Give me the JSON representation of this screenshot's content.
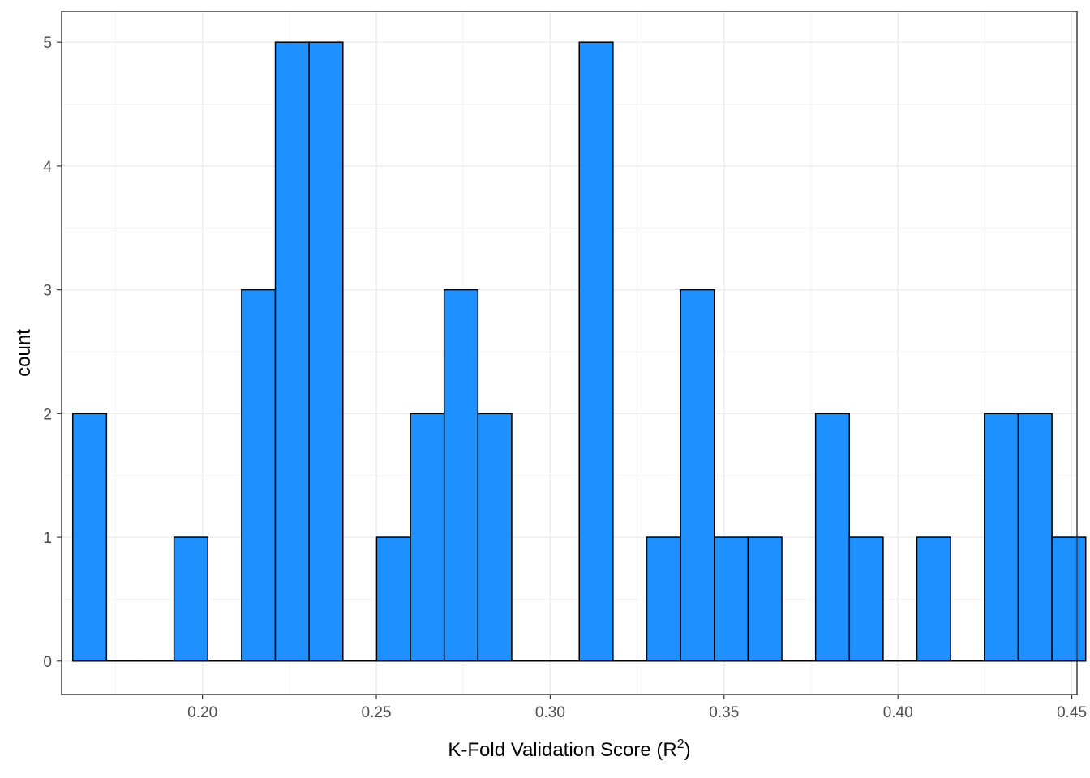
{
  "chart_data": {
    "type": "bar",
    "subtype": "histogram",
    "title": "",
    "xlabel": "K-Fold Validation Score (R",
    "xlabel_superscript": "2",
    "xlabel_suffix": ")",
    "ylabel": "count",
    "xlim": [
      0.1595,
      0.4515
    ],
    "ylim": [
      -0.27,
      5.25
    ],
    "x_ticks": [
      0.2,
      0.25,
      0.3,
      0.35,
      0.4,
      0.45
    ],
    "x_tick_labels": [
      "0.20",
      "0.25",
      "0.30",
      "0.35",
      "0.40",
      "0.45"
    ],
    "y_ticks": [
      0,
      1,
      2,
      3,
      4,
      5
    ],
    "y_tick_labels": [
      "0",
      "1",
      "2",
      "3",
      "4",
      "5"
    ],
    "bin_start": 0.1627,
    "bin_width": 0.00971,
    "counts": [
      2,
      0,
      0,
      1,
      0,
      3,
      5,
      5,
      0,
      1,
      2,
      3,
      2,
      0,
      0,
      5,
      0,
      1,
      3,
      1,
      1,
      0,
      2,
      1,
      0,
      1,
      0,
      2,
      2,
      1
    ],
    "grid": true,
    "fill_color": "#1E90FF",
    "edge_color": "#000000",
    "theme": "bw"
  }
}
